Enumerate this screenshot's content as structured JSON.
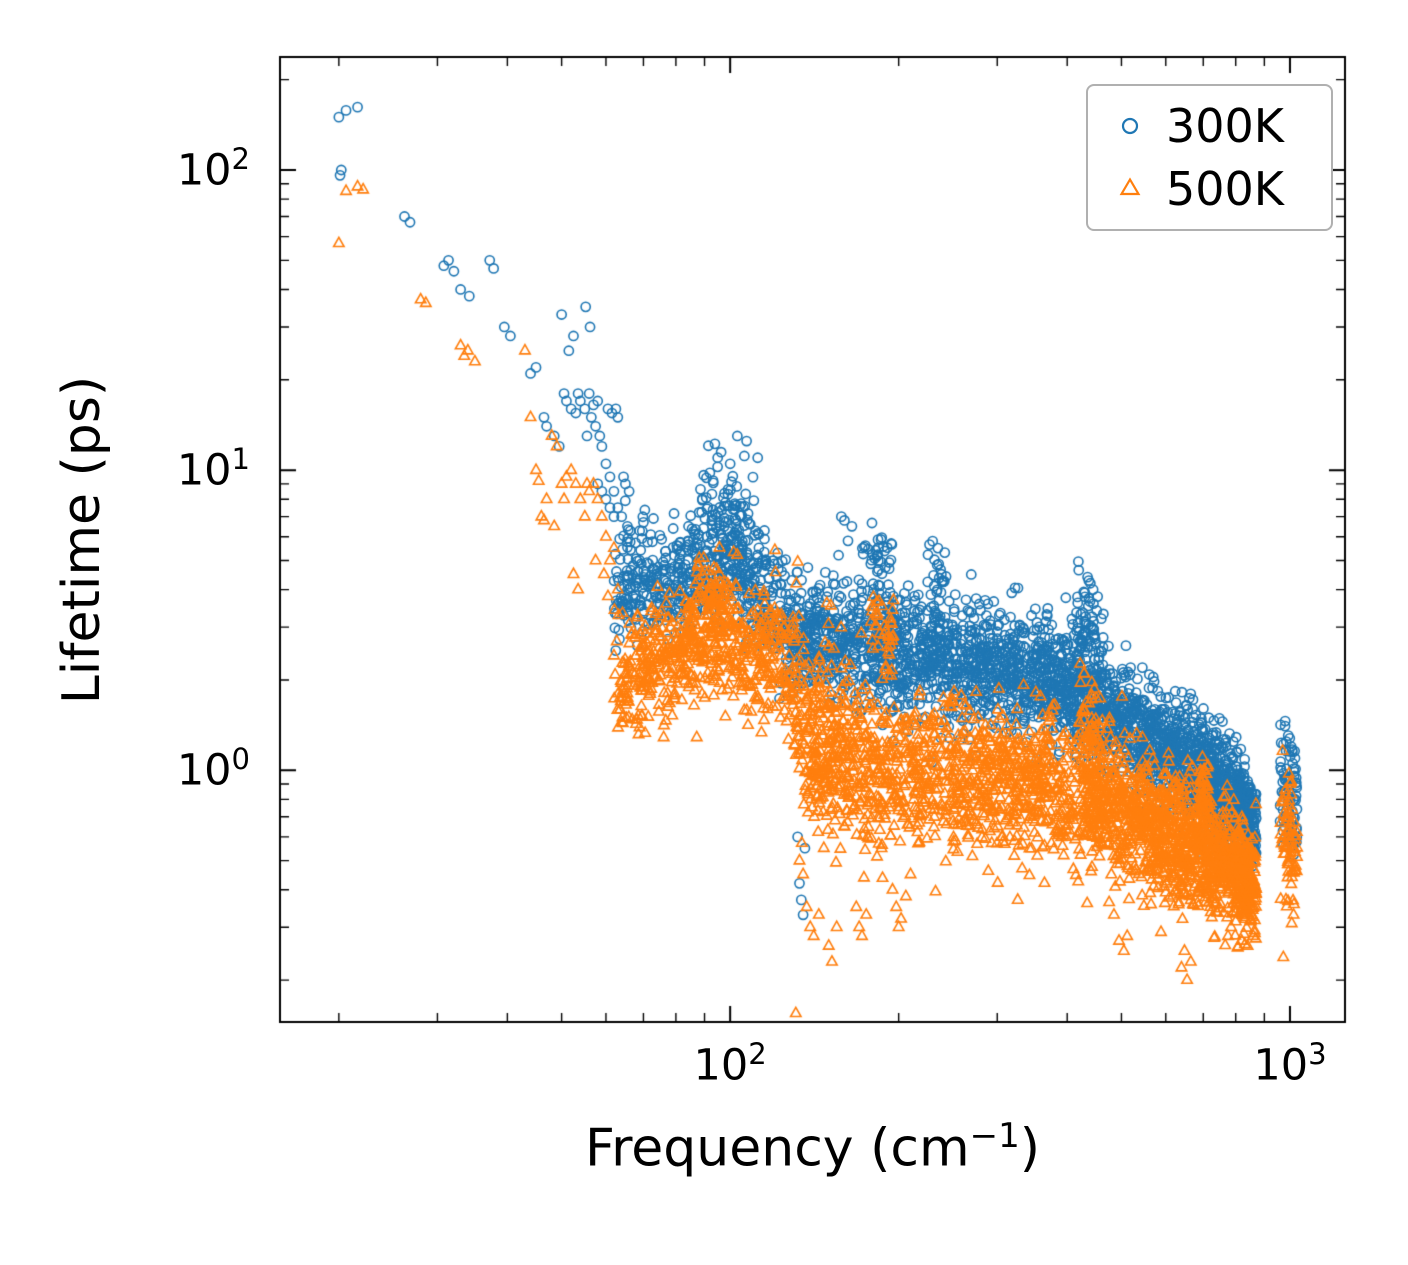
{
  "chart_data": {
    "type": "scatter",
    "title": "",
    "xlabel": "Frequency (cm⁻¹)",
    "xlabel_parts": {
      "pre": "Frequency (cm",
      "sup": "−1",
      "post": ")"
    },
    "ylabel": "Lifetime (ps)",
    "axes": {
      "x_scale": "log",
      "y_scale": "log",
      "xlim": [
        15.7,
        1254
      ],
      "ylim": [
        0.145,
        238
      ],
      "x_ticks": [
        {
          "value": 100,
          "base": "10",
          "exp": "2",
          "label": "10²"
        },
        {
          "value": 1000,
          "base": "10",
          "exp": "3",
          "label": "10³"
        }
      ],
      "y_ticks": [
        {
          "value": 1,
          "base": "10",
          "exp": "0",
          "label": "10⁰"
        },
        {
          "value": 10,
          "base": "10",
          "exp": "1",
          "label": "10¹"
        },
        {
          "value": 100,
          "base": "10",
          "exp": "2",
          "label": "10²"
        }
      ],
      "minor_ticks": "log subdecades 2-9, ticks point inward on all four spines",
      "grid": false
    },
    "legend": {
      "position": "upper right",
      "entries": [
        {
          "label": "300K",
          "marker": "open-circle",
          "color": "#1f77b4"
        },
        {
          "label": "500K",
          "marker": "open-triangle-up",
          "color": "#ff7f0e"
        }
      ]
    },
    "style": {
      "spine_color": "#000000",
      "background": "#ffffff",
      "marker_fill": "none"
    },
    "bands_format": "[x_min, x_max, count, log10_y_mean_at_x_min, log10_y_mean_at_x_max, log10_y_sigma] — density descriptors for the dense scatter bands read off the figure",
    "series": [
      {
        "name": "300K",
        "marker": "circle",
        "color": "#1f77b4",
        "seed": 42,
        "bands": [
          [
            62,
            76,
            130,
            0.58,
            0.62,
            0.08
          ],
          [
            64,
            76,
            20,
            0.8,
            0.78,
            0.05
          ],
          [
            76,
            100,
            240,
            0.62,
            0.72,
            0.1
          ],
          [
            88,
            112,
            45,
            0.92,
            0.88,
            0.07
          ],
          [
            100,
            130,
            260,
            0.72,
            0.45,
            0.1
          ],
          [
            130,
            170,
            300,
            0.45,
            0.42,
            0.1
          ],
          [
            170,
            225,
            330,
            0.42,
            0.38,
            0.11
          ],
          [
            172,
            195,
            30,
            0.72,
            0.7,
            0.05
          ],
          [
            225,
            310,
            400,
            0.38,
            0.34,
            0.1
          ],
          [
            225,
            245,
            20,
            0.66,
            0.64,
            0.05
          ],
          [
            310,
            420,
            430,
            0.34,
            0.28,
            0.1
          ],
          [
            415,
            465,
            55,
            0.52,
            0.45,
            0.07
          ],
          [
            420,
            560,
            430,
            0.28,
            0.1,
            0.09
          ],
          [
            560,
            700,
            390,
            0.1,
            0.0,
            0.09
          ],
          [
            700,
            790,
            270,
            0.0,
            -0.08,
            0.09
          ],
          [
            790,
            870,
            260,
            -0.08,
            -0.2,
            0.08
          ],
          [
            960,
            1030,
            85,
            -0.02,
            -0.12,
            0.12
          ]
        ],
        "points": [
          [
            20,
            150
          ],
          [
            20.6,
            158
          ],
          [
            21.6,
            162
          ],
          [
            20.2,
            100
          ],
          [
            20.1,
            96
          ],
          [
            26.2,
            70
          ],
          [
            26.8,
            67
          ],
          [
            30.8,
            48
          ],
          [
            31.4,
            50
          ],
          [
            32.1,
            46
          ],
          [
            33,
            40
          ],
          [
            34.2,
            38
          ],
          [
            37.2,
            50
          ],
          [
            37.8,
            47
          ],
          [
            39.5,
            30
          ],
          [
            40.5,
            28
          ],
          [
            44,
            21
          ],
          [
            45,
            22
          ],
          [
            46.5,
            15
          ],
          [
            47,
            14
          ],
          [
            48.5,
            13
          ],
          [
            49.5,
            12
          ],
          [
            50,
            33
          ],
          [
            55.2,
            35
          ],
          [
            56.2,
            30
          ],
          [
            51.5,
            25
          ],
          [
            52.5,
            28
          ],
          [
            50.5,
            18
          ],
          [
            51,
            17
          ],
          [
            52,
            16
          ],
          [
            53,
            15.5
          ],
          [
            53.5,
            18
          ],
          [
            54,
            17
          ],
          [
            55,
            16
          ],
          [
            55.5,
            13
          ],
          [
            56,
            18
          ],
          [
            56.5,
            15
          ],
          [
            57,
            16.5
          ],
          [
            57.5,
            14
          ],
          [
            58,
            17
          ],
          [
            58.5,
            13
          ],
          [
            59,
            12
          ],
          [
            60.5,
            16
          ],
          [
            61.5,
            15.5
          ],
          [
            62.5,
            16
          ],
          [
            63,
            15
          ],
          [
            60,
            10.5
          ],
          [
            61,
            9.5
          ],
          [
            62,
            8.5
          ],
          [
            58,
            9
          ],
          [
            59,
            8.5
          ],
          [
            60,
            8
          ],
          [
            61,
            7.5
          ],
          [
            62,
            7
          ],
          [
            63,
            7.5
          ],
          [
            64,
            7
          ],
          [
            64.5,
            9.5
          ],
          [
            65,
            9
          ],
          [
            66,
            8.5
          ],
          [
            92,
            9.8
          ],
          [
            95,
            11
          ],
          [
            100,
            10.5
          ],
          [
            103,
            13
          ],
          [
            107,
            12.5
          ],
          [
            112,
            11
          ],
          [
            158,
            7
          ],
          [
            160,
            6.8
          ],
          [
            165,
            6.5
          ],
          [
            230,
            5.8
          ],
          [
            235,
            5.5
          ],
          [
            430,
            3.9
          ],
          [
            435,
            4.4
          ],
          [
            440,
            4.2
          ],
          [
            445,
            4
          ],
          [
            132,
            0.6
          ],
          [
            133,
            0.42
          ],
          [
            134,
            0.37
          ],
          [
            135,
            0.33
          ],
          [
            136,
            0.55
          ],
          [
            700,
            0.52
          ],
          [
            710,
            0.5
          ],
          [
            720,
            0.55
          ],
          [
            1005,
            1.2
          ],
          [
            1010,
            1.15
          ]
        ]
      },
      {
        "name": "500K",
        "marker": "triangle",
        "color": "#ff7f0e",
        "seed": 7,
        "bands": [
          [
            62,
            76,
            150,
            0.3,
            0.36,
            0.1
          ],
          [
            76,
            95,
            220,
            0.36,
            0.48,
            0.1
          ],
          [
            86,
            100,
            35,
            0.62,
            0.6,
            0.05
          ],
          [
            95,
            130,
            260,
            0.48,
            0.3,
            0.11
          ],
          [
            130,
            165,
            300,
            0.2,
            0.02,
            0.15
          ],
          [
            165,
            250,
            380,
            0.02,
            -0.02,
            0.13
          ],
          [
            178,
            196,
            35,
            0.48,
            0.46,
            0.06
          ],
          [
            250,
            420,
            520,
            -0.02,
            -0.08,
            0.12
          ],
          [
            415,
            465,
            55,
            0.18,
            0.1,
            0.08
          ],
          [
            420,
            560,
            430,
            -0.08,
            -0.18,
            0.11
          ],
          [
            560,
            700,
            390,
            -0.18,
            -0.28,
            0.11
          ],
          [
            688,
            715,
            40,
            -0.08,
            -0.06,
            0.05
          ],
          [
            700,
            790,
            250,
            -0.28,
            -0.33,
            0.1
          ],
          [
            790,
            870,
            250,
            -0.33,
            -0.38,
            0.09
          ],
          [
            960,
            1030,
            75,
            -0.18,
            -0.26,
            0.12
          ]
        ],
        "points": [
          [
            20,
            57
          ],
          [
            20.6,
            85
          ],
          [
            21.6,
            88
          ],
          [
            22.1,
            86
          ],
          [
            28,
            37
          ],
          [
            28.6,
            36
          ],
          [
            33,
            26
          ],
          [
            33.5,
            24
          ],
          [
            34,
            25
          ],
          [
            35,
            23
          ],
          [
            43,
            25
          ],
          [
            44,
            15
          ],
          [
            45,
            10
          ],
          [
            45.5,
            9.2
          ],
          [
            46,
            7
          ],
          [
            46.5,
            6.8
          ],
          [
            47,
            8
          ],
          [
            48,
            13
          ],
          [
            49,
            12
          ],
          [
            48.5,
            6.5
          ],
          [
            50,
            9
          ],
          [
            50.5,
            8
          ],
          [
            51,
            9.5
          ],
          [
            52,
            10
          ],
          [
            53,
            9
          ],
          [
            54,
            8
          ],
          [
            55,
            7
          ],
          [
            52.5,
            4.5
          ],
          [
            53.5,
            4
          ],
          [
            55.5,
            9
          ],
          [
            56,
            8.5
          ],
          [
            57,
            9
          ],
          [
            58,
            8
          ],
          [
            59,
            7
          ],
          [
            57.5,
            5
          ],
          [
            59.5,
            4.5
          ],
          [
            60,
            6
          ],
          [
            61,
            5
          ],
          [
            62,
            5.5
          ],
          [
            63,
            4
          ],
          [
            60.5,
            3.8
          ],
          [
            64.5,
            1.9
          ],
          [
            65,
            2.1
          ],
          [
            66,
            2.2
          ],
          [
            131,
            0.155
          ],
          [
            133,
            0.5
          ],
          [
            135,
            0.45
          ],
          [
            137,
            0.35
          ],
          [
            139,
            0.3
          ],
          [
            141,
            0.28
          ],
          [
            144,
            0.33
          ],
          [
            147,
            0.55
          ],
          [
            150,
            0.26
          ],
          [
            152,
            0.23
          ],
          [
            155,
            0.3
          ],
          [
            147,
            1
          ],
          [
            150,
            0.9
          ],
          [
            153,
            0.85
          ],
          [
            168,
            0.35
          ],
          [
            170,
            0.3
          ],
          [
            172,
            0.28
          ],
          [
            175,
            0.33
          ],
          [
            195,
            0.4
          ],
          [
            198,
            0.35
          ],
          [
            200,
            0.3
          ],
          [
            202,
            0.32
          ],
          [
            206,
            0.38
          ],
          [
            210,
            0.45
          ],
          [
            495,
            0.27
          ],
          [
            505,
            0.25
          ],
          [
            512,
            0.28
          ],
          [
            640,
            0.22
          ],
          [
            648,
            0.25
          ],
          [
            655,
            0.2
          ],
          [
            665,
            0.23
          ],
          [
            775,
            0.28
          ],
          [
            785,
            0.3
          ],
          [
            820,
            0.27
          ],
          [
            840,
            0.26
          ],
          [
            860,
            0.28
          ],
          [
            1000,
            0.9
          ],
          [
            1015,
            0.33
          ]
        ]
      }
    ]
  }
}
